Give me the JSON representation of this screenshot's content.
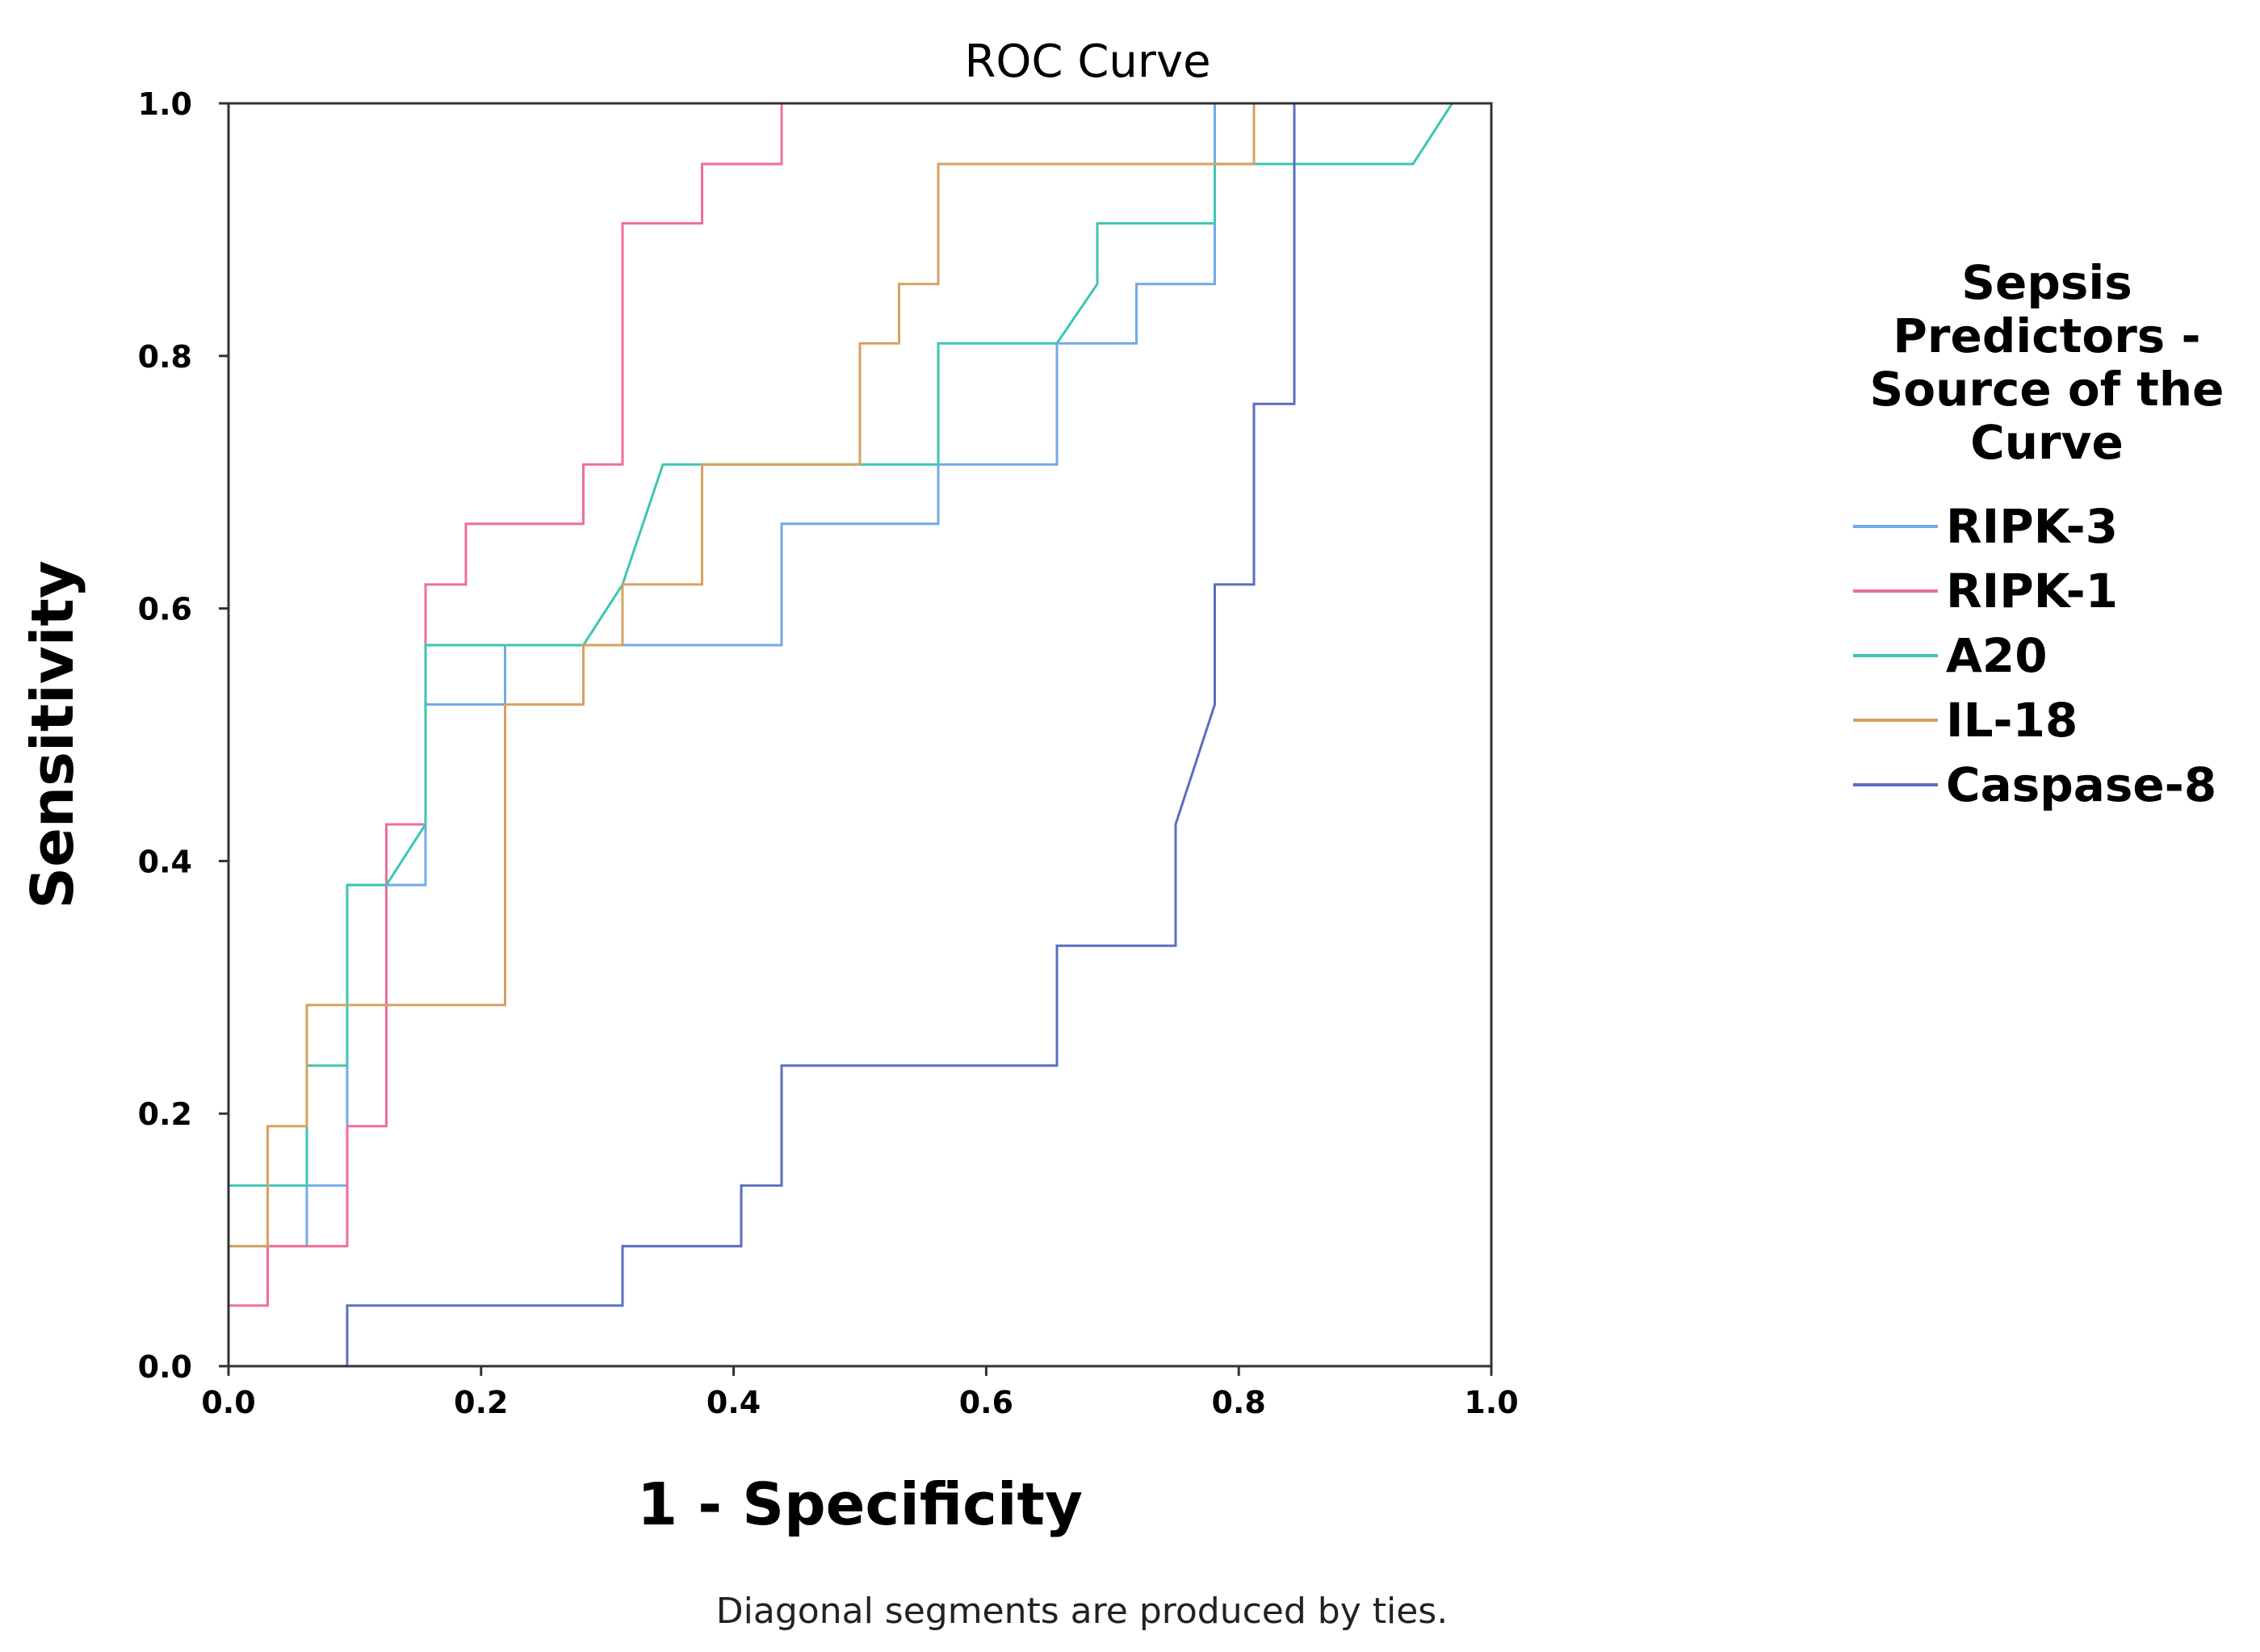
{
  "chart_data": {
    "type": "line",
    "title": "ROC Curve",
    "xlabel": "1 - Specificity",
    "ylabel": "Sensitivity",
    "xlim": [
      0.0,
      1.0
    ],
    "ylim": [
      0.0,
      1.0
    ],
    "x_ticks": [
      "0.0",
      "0.2",
      "0.4",
      "0.6",
      "0.8",
      "1.0"
    ],
    "y_ticks": [
      "0.0",
      "0.2",
      "0.4",
      "0.6",
      "0.8",
      "1.0"
    ],
    "grid": false,
    "legend": {
      "title_lines": [
        "Sepsis",
        "Predictors -",
        "Source of the",
        "Curve"
      ],
      "placement": "right"
    },
    "footnote": "Diagonal segments are produced by ties.",
    "series": [
      {
        "name": "RIPK-3",
        "color": "#74a9e8",
        "points": [
          [
            0,
            0
          ],
          [
            0,
            0.095
          ],
          [
            0.062,
            0.095
          ],
          [
            0.062,
            0.143
          ],
          [
            0.094,
            0.143
          ],
          [
            0.094,
            0.381
          ],
          [
            0.156,
            0.381
          ],
          [
            0.156,
            0.524
          ],
          [
            0.219,
            0.524
          ],
          [
            0.219,
            0.571
          ],
          [
            0.438,
            0.571
          ],
          [
            0.438,
            0.667
          ],
          [
            0.562,
            0.667
          ],
          [
            0.562,
            0.714
          ],
          [
            0.656,
            0.714
          ],
          [
            0.656,
            0.81
          ],
          [
            0.719,
            0.81
          ],
          [
            0.719,
            0.857
          ],
          [
            0.781,
            0.857
          ],
          [
            0.781,
            1.0
          ],
          [
            1.0,
            1.0
          ]
        ]
      },
      {
        "name": "RIPK-1",
        "color": "#ef6f9a",
        "points": [
          [
            0,
            0
          ],
          [
            0,
            0.048
          ],
          [
            0.031,
            0.048
          ],
          [
            0.031,
            0.095
          ],
          [
            0.094,
            0.095
          ],
          [
            0.094,
            0.19
          ],
          [
            0.125,
            0.19
          ],
          [
            0.125,
            0.429
          ],
          [
            0.156,
            0.429
          ],
          [
            0.156,
            0.619
          ],
          [
            0.188,
            0.619
          ],
          [
            0.188,
            0.667
          ],
          [
            0.281,
            0.667
          ],
          [
            0.281,
            0.714
          ],
          [
            0.312,
            0.714
          ],
          [
            0.312,
            0.905
          ],
          [
            0.375,
            0.905
          ],
          [
            0.375,
            0.952
          ],
          [
            0.438,
            0.952
          ],
          [
            0.438,
            1.0
          ],
          [
            1.0,
            1.0
          ]
        ]
      },
      {
        "name": "A20",
        "color": "#3cc6b2",
        "points": [
          [
            0,
            0
          ],
          [
            0,
            0.143
          ],
          [
            0.062,
            0.143
          ],
          [
            0.062,
            0.238
          ],
          [
            0.094,
            0.238
          ],
          [
            0.094,
            0.381
          ],
          [
            0.125,
            0.381
          ],
          [
            0.156,
            0.429
          ],
          [
            0.156,
            0.571
          ],
          [
            0.281,
            0.571
          ],
          [
            0.312,
            0.619
          ],
          [
            0.344,
            0.714
          ],
          [
            0.562,
            0.714
          ],
          [
            0.562,
            0.81
          ],
          [
            0.656,
            0.81
          ],
          [
            0.688,
            0.857
          ],
          [
            0.688,
            0.905
          ],
          [
            0.781,
            0.905
          ],
          [
            0.781,
            0.952
          ],
          [
            0.938,
            0.952
          ],
          [
            0.969,
            1.0
          ],
          [
            1.0,
            1.0
          ]
        ]
      },
      {
        "name": "IL-18",
        "color": "#d7a162",
        "points": [
          [
            0,
            0
          ],
          [
            0,
            0.095
          ],
          [
            0.031,
            0.095
          ],
          [
            0.031,
            0.19
          ],
          [
            0.062,
            0.19
          ],
          [
            0.062,
            0.286
          ],
          [
            0.219,
            0.286
          ],
          [
            0.219,
            0.524
          ],
          [
            0.281,
            0.524
          ],
          [
            0.281,
            0.571
          ],
          [
            0.312,
            0.571
          ],
          [
            0.312,
            0.619
          ],
          [
            0.375,
            0.619
          ],
          [
            0.375,
            0.714
          ],
          [
            0.5,
            0.714
          ],
          [
            0.5,
            0.81
          ],
          [
            0.531,
            0.81
          ],
          [
            0.531,
            0.857
          ],
          [
            0.562,
            0.857
          ],
          [
            0.562,
            0.952
          ],
          [
            0.812,
            0.952
          ],
          [
            0.812,
            1.0
          ],
          [
            1.0,
            1.0
          ]
        ]
      },
      {
        "name": "Caspase-8",
        "color": "#5a6fbf",
        "points": [
          [
            0.094,
            0
          ],
          [
            0.094,
            0.048
          ],
          [
            0.312,
            0.048
          ],
          [
            0.312,
            0.095
          ],
          [
            0.406,
            0.095
          ],
          [
            0.406,
            0.143
          ],
          [
            0.438,
            0.143
          ],
          [
            0.438,
            0.238
          ],
          [
            0.656,
            0.238
          ],
          [
            0.656,
            0.333
          ],
          [
            0.75,
            0.333
          ],
          [
            0.75,
            0.429
          ],
          [
            0.781,
            0.524
          ],
          [
            0.781,
            0.619
          ],
          [
            0.812,
            0.619
          ],
          [
            0.812,
            0.762
          ],
          [
            0.844,
            0.762
          ],
          [
            0.844,
            1.0
          ],
          [
            1.0,
            1.0
          ]
        ]
      }
    ]
  }
}
